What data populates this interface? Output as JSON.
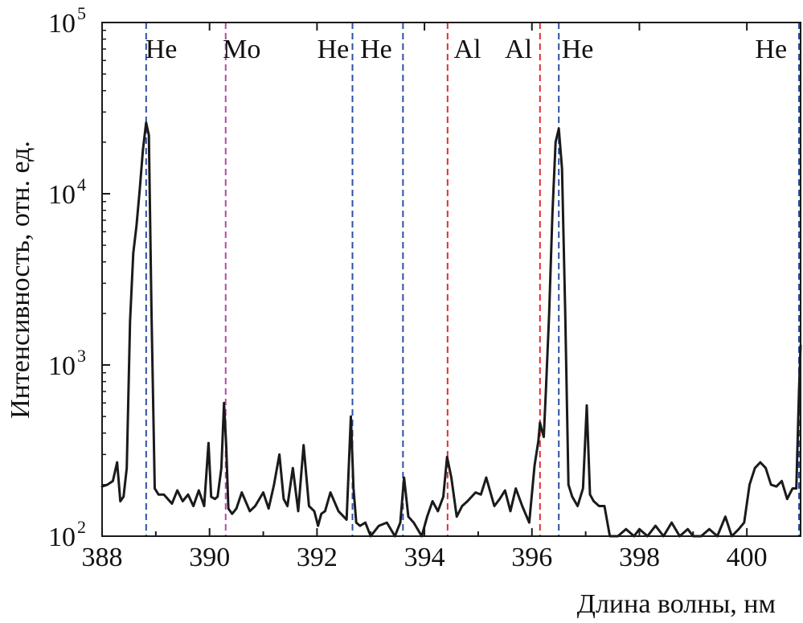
{
  "chart_data": {
    "type": "line",
    "title": "",
    "xlabel": "Длина волны, нм",
    "ylabel": "Интенсивность, отн. ед.",
    "xlim": [
      388,
      401
    ],
    "ylim": [
      100,
      100000
    ],
    "y_scale": "log",
    "grid": false,
    "x_ticks": [
      388,
      390,
      392,
      394,
      396,
      398,
      400
    ],
    "x_tick_labels": [
      "388",
      "390",
      "392",
      "394",
      "396",
      "398",
      "400"
    ],
    "y_ticks": [
      {
        "value": 100,
        "base": "10",
        "exp": "2"
      },
      {
        "value": 1000,
        "base": "10",
        "exp": "3"
      },
      {
        "value": 10000,
        "base": "10",
        "exp": "4"
      },
      {
        "value": 100000,
        "base": "10",
        "exp": "5"
      }
    ],
    "series": [
      {
        "color": "#1a1a1a",
        "x": [
          388.0,
          388.1,
          388.2,
          388.28,
          388.34,
          388.4,
          388.46,
          388.52,
          388.58,
          388.64,
          388.7,
          388.76,
          388.82,
          388.87,
          388.92,
          388.98,
          389.05,
          389.15,
          389.3,
          389.4,
          389.5,
          389.6,
          389.7,
          389.8,
          389.9,
          389.98,
          390.03,
          390.1,
          390.15,
          390.22,
          390.27,
          390.31,
          390.35,
          390.42,
          390.5,
          390.6,
          390.75,
          390.85,
          391.0,
          391.1,
          391.2,
          391.3,
          391.38,
          391.45,
          391.55,
          391.65,
          391.75,
          391.85,
          391.95,
          392.02,
          392.08,
          392.15,
          392.25,
          392.4,
          392.55,
          392.63,
          392.68,
          392.73,
          392.8,
          392.9,
          393.0,
          393.15,
          393.3,
          393.45,
          393.55,
          393.62,
          393.7,
          393.8,
          393.95,
          394.05,
          394.15,
          394.25,
          394.35,
          394.42,
          394.5,
          394.6,
          394.7,
          394.8,
          394.95,
          395.05,
          395.15,
          395.3,
          395.4,
          395.5,
          395.6,
          395.7,
          395.82,
          395.95,
          396.05,
          396.12,
          396.15,
          396.18,
          396.22,
          396.26,
          396.32,
          396.38,
          396.44,
          396.5,
          396.56,
          396.62,
          396.68,
          396.75,
          396.85,
          396.95,
          397.02,
          397.08,
          397.15,
          397.25,
          397.35,
          397.45,
          397.5,
          397.6,
          397.75,
          397.9,
          398.0,
          398.15,
          398.3,
          398.45,
          398.6,
          398.75,
          398.9,
          399.0,
          399.15,
          399.3,
          399.45,
          399.6,
          399.72,
          399.85,
          399.95,
          400.05,
          400.15,
          400.25,
          400.35,
          400.45,
          400.55,
          400.65,
          400.75,
          400.85,
          400.92,
          400.97,
          401.0
        ],
        "y": [
          195,
          200,
          210,
          270,
          160,
          170,
          250,
          1800,
          4500,
          6500,
          10500,
          18000,
          26000,
          22000,
          2000,
          190,
          175,
          175,
          155,
          185,
          160,
          175,
          150,
          185,
          150,
          350,
          170,
          165,
          170,
          250,
          600,
          340,
          145,
          135,
          145,
          180,
          140,
          150,
          180,
          145,
          200,
          300,
          165,
          150,
          250,
          140,
          340,
          150,
          140,
          115,
          135,
          140,
          180,
          140,
          125,
          500,
          190,
          120,
          115,
          120,
          100,
          115,
          120,
          100,
          120,
          220,
          130,
          120,
          90,
          130,
          160,
          140,
          170,
          290,
          220,
          130,
          150,
          160,
          180,
          175,
          220,
          150,
          165,
          185,
          140,
          190,
          150,
          120,
          260,
          360,
          460,
          420,
          380,
          700,
          2000,
          7500,
          20000,
          24000,
          14000,
          2000,
          200,
          170,
          150,
          190,
          580,
          175,
          160,
          150,
          150,
          100,
          90,
          100,
          110,
          90,
          110,
          90,
          115,
          95,
          120,
          90,
          110,
          100,
          90,
          110,
          100,
          130,
          90,
          110,
          120,
          200,
          250,
          270,
          250,
          200,
          195,
          210,
          165,
          190,
          190,
          700,
          1300
        ]
      }
    ],
    "annotations": [
      {
        "x": 388.82,
        "color": "#2e4fa3",
        "label": "He",
        "label_x": 389.1
      },
      {
        "x": 390.3,
        "color": "#b24aa0",
        "label": "Mo",
        "label_x": 390.6
      },
      {
        "x": 392.66,
        "color": "#2e4fa3",
        "label": "He",
        "label_x": 392.3
      },
      {
        "x": 393.6,
        "color": "#2e4fa3",
        "label": "He",
        "label_x": 393.1
      },
      {
        "x": 394.43,
        "color": "#e03030",
        "label": "Al",
        "label_x": 394.8
      },
      {
        "x": 396.15,
        "color": "#e03030",
        "label": "Al",
        "label_x": 395.75
      },
      {
        "x": 396.5,
        "color": "#2e4fa3",
        "label": "He",
        "label_x": 396.85
      },
      {
        "x": 400.97,
        "color": "#2e4fa3",
        "label": "He",
        "label_x": 400.45
      }
    ]
  }
}
